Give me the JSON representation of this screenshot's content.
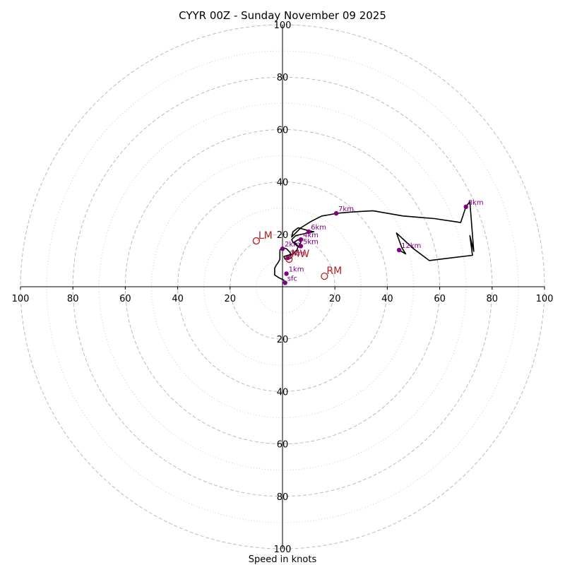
{
  "chart_data": {
    "type": "scatter",
    "subtype": "hodograph",
    "title": "CYYR 00Z - Sunday November 09 2025",
    "xlabel": "Speed in knots",
    "range": [
      -100,
      100
    ],
    "tick_labels_x": [
      "100",
      "80",
      "60",
      "40",
      "20",
      "20",
      "40",
      "60",
      "80",
      "100"
    ],
    "tick_labels_y": [
      "100",
      "80",
      "60",
      "40",
      "20",
      "20",
      "40",
      "60",
      "80",
      "100"
    ],
    "ring_radii_dashed": [
      20,
      40,
      60,
      80,
      100
    ],
    "ring_radii_dotted": [
      10,
      30,
      50,
      70,
      90
    ],
    "colors": {
      "trace": "#000000",
      "height_marker": "#800080",
      "storm_motion": "#b22222",
      "ring": "#bbbbbb",
      "axis": "#000000"
    },
    "trace": [
      [
        1.0,
        1.5
      ],
      [
        0.5,
        2.5
      ],
      [
        -1.5,
        3.5
      ],
      [
        -3.0,
        4.5
      ],
      [
        -3.0,
        7.0
      ],
      [
        -2.5,
        8.0
      ],
      [
        -1.5,
        9.5
      ],
      [
        -1.0,
        10.5
      ],
      [
        -1.0,
        12.5
      ],
      [
        -1.0,
        14.0
      ],
      [
        0.0,
        15.0
      ],
      [
        1.5,
        14.5
      ],
      [
        3.0,
        13.0
      ],
      [
        3.0,
        12.0
      ],
      [
        3.5,
        11.0
      ],
      [
        1.0,
        10.5
      ],
      [
        0.5,
        11.5
      ],
      [
        2.0,
        12.0
      ],
      [
        4.0,
        12.5
      ],
      [
        5.5,
        14.0
      ],
      [
        6.0,
        15.5
      ],
      [
        4.5,
        17.0
      ],
      [
        6.0,
        18.0
      ],
      [
        7.0,
        17.0
      ],
      [
        6.5,
        16.0
      ],
      [
        6.5,
        15.0
      ],
      [
        5.0,
        16.0
      ],
      [
        4.0,
        17.0
      ],
      [
        3.5,
        18.0
      ],
      [
        5.0,
        19.5
      ],
      [
        9.5,
        20.5
      ],
      [
        12.0,
        21.0
      ],
      [
        9.5,
        21.5
      ],
      [
        6.0,
        22.5
      ],
      [
        4.0,
        21.0
      ],
      [
        3.5,
        19.0
      ],
      [
        5.0,
        20.5
      ],
      [
        7.0,
        22.5
      ],
      [
        11.0,
        25.0
      ],
      [
        15.0,
        27.0
      ],
      [
        18.0,
        27.5
      ],
      [
        20.5,
        28.0
      ],
      [
        26.0,
        28.5
      ],
      [
        34.5,
        29.0
      ],
      [
        46.0,
        27.0
      ],
      [
        52.0,
        26.5
      ],
      [
        58.0,
        26.0
      ],
      [
        68.0,
        24.5
      ],
      [
        70.0,
        30.5
      ],
      [
        71.5,
        32.5
      ],
      [
        73.0,
        13.5
      ],
      [
        71.5,
        19.5
      ],
      [
        72.5,
        12.0
      ],
      [
        56.0,
        10.0
      ],
      [
        50.0,
        14.5
      ],
      [
        43.5,
        20.5
      ],
      [
        45.5,
        15.0
      ],
      [
        47.0,
        12.5
      ],
      [
        44.5,
        14.0
      ]
    ],
    "height_markers": [
      {
        "label": "sfc",
        "u": 1.0,
        "v": 1.5
      },
      {
        "label": "1km",
        "u": 1.5,
        "v": 5.0
      },
      {
        "label": "2km",
        "u": 0.0,
        "v": 14.5
      },
      {
        "label": "3km",
        "u": 2.0,
        "v": 11.0
      },
      {
        "label": "4km",
        "u": 7.0,
        "v": 18.0
      },
      {
        "label": "5km",
        "u": 7.0,
        "v": 15.5
      },
      {
        "label": "6km",
        "u": 10.0,
        "v": 21.0
      },
      {
        "label": "7km",
        "u": 20.5,
        "v": 28.0
      },
      {
        "label": "8km",
        "u": 70.0,
        "v": 30.5
      },
      {
        "label": "12km",
        "u": 44.5,
        "v": 14.0
      }
    ],
    "storm_motion": [
      {
        "label": "LM",
        "u": -10.0,
        "v": 17.5
      },
      {
        "label": "RM",
        "u": 16.0,
        "v": 4.0
      },
      {
        "label": "MW",
        "u": 2.5,
        "v": 10.5
      }
    ]
  }
}
